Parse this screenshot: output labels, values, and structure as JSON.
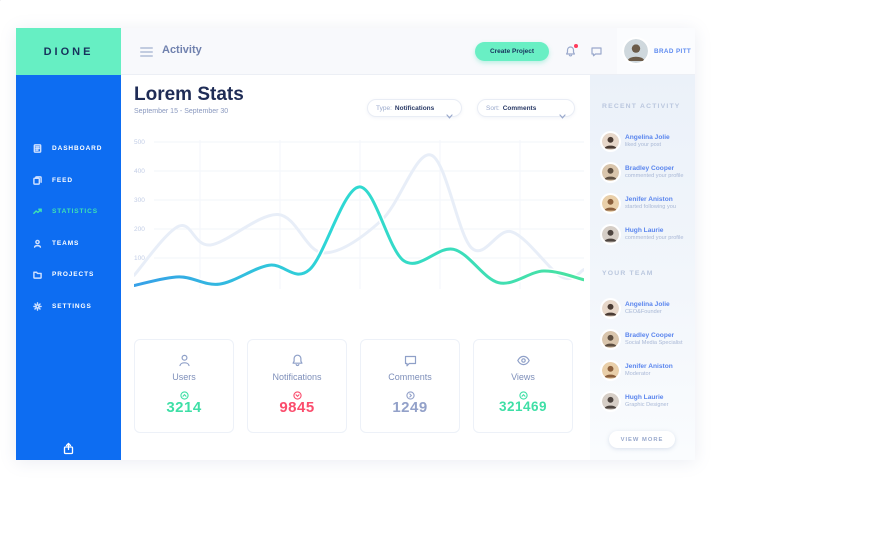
{
  "brand": {
    "name": "DIONE",
    "accent_mint": "#66efc3",
    "accent_blue": "#0d6df2"
  },
  "nav": {
    "items": [
      {
        "label": "DASHBOARD",
        "icon": "clipboard-icon",
        "active": false
      },
      {
        "label": "FEED",
        "icon": "pages-icon",
        "active": false
      },
      {
        "label": "STATISTICS",
        "icon": "chart-line-icon",
        "active": true
      },
      {
        "label": "TEAMS",
        "icon": "person-icon",
        "active": false
      },
      {
        "label": "PROJECTS",
        "icon": "folder-icon",
        "active": false
      },
      {
        "label": "SETTINGS",
        "icon": "gear-icon",
        "active": false
      }
    ],
    "share_icon": "share-icon"
  },
  "header": {
    "title": "Activity",
    "create_button_label": "Create Project",
    "bell_icon": "bell-icon",
    "bell_has_notification": true,
    "chat_icon": "chat-icon",
    "user_name": "BRAD PITT"
  },
  "stats_header": {
    "title": "Lorem Stats",
    "date_range": "September 15 - September 30",
    "type_filter_label": "Type:",
    "type_filter_value": "Notifications",
    "sort_filter_label": "Sort:",
    "sort_filter_value": "Comments"
  },
  "chart_data": {
    "type": "line",
    "title": "Lorem Stats",
    "subtitle": "September 15 - September 30",
    "ylim": [
      0,
      500
    ],
    "yticks": [
      100,
      200,
      300,
      400,
      500
    ],
    "grid": true,
    "legend": "none",
    "series": [
      {
        "name": "previous-period",
        "color": "#e8eef8",
        "points": [
          [
            0,
            40
          ],
          [
            10,
            210
          ],
          [
            17,
            145
          ],
          [
            32,
            250
          ],
          [
            42,
            118
          ],
          [
            55,
            230
          ],
          [
            66,
            455
          ],
          [
            75,
            135
          ],
          [
            84,
            190
          ],
          [
            95,
            35
          ],
          [
            100,
            60
          ]
        ]
      },
      {
        "name": "current-period",
        "color_gradient": [
          "#36a0e8",
          "#2ed8d5",
          "#49e2a0"
        ],
        "points": [
          [
            0,
            5
          ],
          [
            10,
            35
          ],
          [
            19,
            10
          ],
          [
            30,
            75
          ],
          [
            39,
            60
          ],
          [
            50,
            345
          ],
          [
            60,
            90
          ],
          [
            71,
            130
          ],
          [
            81,
            15
          ],
          [
            91,
            55
          ],
          [
            100,
            25
          ]
        ]
      }
    ]
  },
  "summary_cards": [
    {
      "label": "Users",
      "value": "3214",
      "icon": "person-icon",
      "trend": "up",
      "color": "#3edfa6"
    },
    {
      "label": "Notifications",
      "value": "9845",
      "icon": "bell-icon",
      "trend": "down",
      "color": "#fb4d6d"
    },
    {
      "label": "Comments",
      "value": "1249",
      "icon": "chat-icon",
      "trend": "right",
      "color": "#93a1c9"
    },
    {
      "label": "Views",
      "value": "321469",
      "icon": "eye-icon",
      "trend": "up",
      "color": "#3edfa6"
    }
  ],
  "recent_activity": {
    "title": "RECENT ACTIVITY",
    "items": [
      {
        "name": "Angelina Jolie",
        "action": "liked your post"
      },
      {
        "name": "Bradley Cooper",
        "action": "commented your profile"
      },
      {
        "name": "Jenifer Aniston",
        "action": "started following you"
      },
      {
        "name": "Hugh Laurie",
        "action": "commented your profile"
      }
    ]
  },
  "team": {
    "title": "YOUR TEAM",
    "items": [
      {
        "name": "Angelina Jolie",
        "role": "CEO&Founder"
      },
      {
        "name": "Bradley Cooper",
        "role": "Social Media Specialist"
      },
      {
        "name": "Jenifer Aniston",
        "role": "Moderator"
      },
      {
        "name": "Hugh Laurie",
        "role": "Graphic Designer"
      }
    ],
    "view_more_label": "VIEW MORE"
  }
}
